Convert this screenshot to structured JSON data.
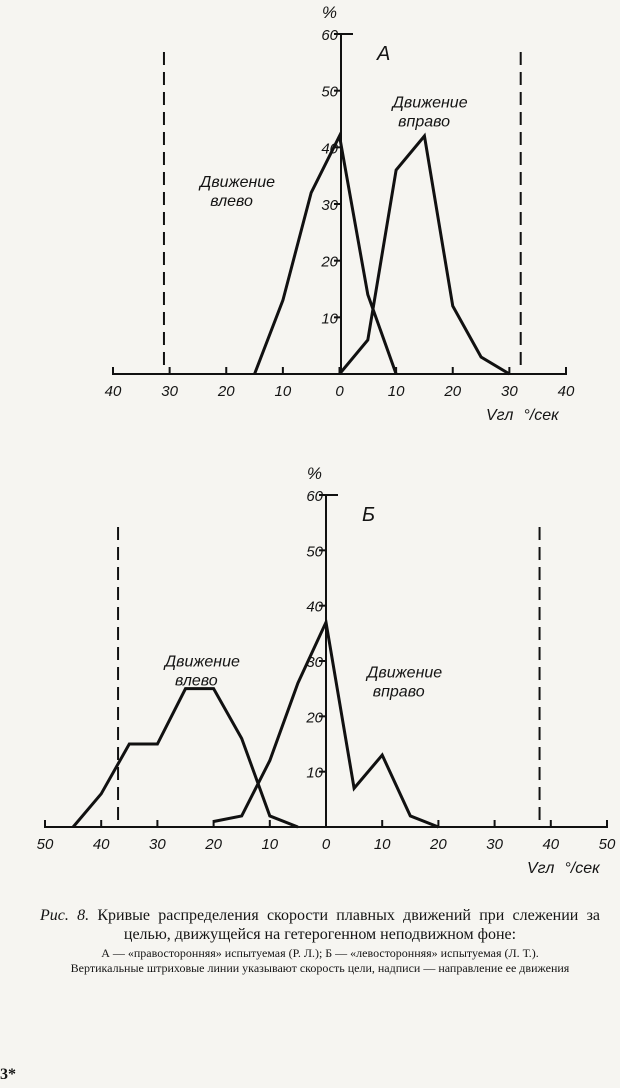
{
  "chart_data": [
    {
      "type": "line",
      "panel_label": "А",
      "ylabel": "%",
      "xlabel": "Vгл °/сек",
      "xlim": [
        -40,
        40
      ],
      "ylim": [
        0,
        60
      ],
      "x_tick_labels": [
        "40",
        "30",
        "20",
        "10",
        "0",
        "10",
        "20",
        "30",
        "40"
      ],
      "x_ticks": [
        -40,
        -30,
        -20,
        -10,
        0,
        10,
        20,
        30,
        40
      ],
      "y_ticks": [
        10,
        20,
        30,
        40,
        50,
        60
      ],
      "y_tick_labels": [
        "10",
        "20",
        "30",
        "40",
        "50",
        "60"
      ],
      "series": [
        {
          "name": "Движение влево",
          "x": [
            -15,
            -10,
            -5,
            0,
            5,
            10
          ],
          "y": [
            0,
            13,
            32,
            42,
            14,
            0
          ]
        },
        {
          "name": "Движение вправо",
          "x": [
            0,
            5,
            10,
            15,
            20,
            25,
            30
          ],
          "y": [
            0,
            6,
            36,
            42,
            12,
            3,
            0
          ]
        }
      ],
      "annotations": [
        {
          "text": [
            "Движение",
            "влево"
          ],
          "x": -18,
          "y": 33
        },
        {
          "text": [
            "Движение",
            "вправо"
          ],
          "x": 16,
          "y": 47
        }
      ],
      "target_speed_lines": [
        -31,
        32
      ],
      "grid": false
    },
    {
      "type": "line",
      "panel_label": "Б",
      "ylabel": "%",
      "xlabel": "Vгл °/сек",
      "xlim": [
        -50,
        50
      ],
      "ylim": [
        0,
        60
      ],
      "x_tick_labels": [
        "50",
        "40",
        "30",
        "20",
        "10",
        "0",
        "10",
        "20",
        "30",
        "40",
        "50"
      ],
      "x_ticks": [
        -50,
        -40,
        -30,
        -20,
        -10,
        0,
        10,
        20,
        30,
        40,
        50
      ],
      "y_ticks": [
        10,
        20,
        30,
        40,
        50,
        60
      ],
      "y_tick_labels": [
        "10",
        "20",
        "30",
        "40",
        "50",
        "60"
      ],
      "series": [
        {
          "name": "Движение влево",
          "x": [
            -45,
            -40,
            -35,
            -30,
            -25,
            -20,
            -15,
            -10,
            -5
          ],
          "y": [
            0,
            6,
            15,
            15,
            25,
            25,
            16,
            2,
            0
          ]
        },
        {
          "name": "Движение вправо",
          "x": [
            -20,
            -15,
            -10,
            -5,
            0,
            5,
            10,
            15,
            20
          ],
          "y": [
            1,
            2,
            12,
            26,
            37,
            7,
            13,
            2,
            0
          ]
        }
      ],
      "annotations": [
        {
          "text": [
            "Движение",
            "влево"
          ],
          "x": -22,
          "y": 29
        },
        {
          "text": [
            "Движение",
            "вправо"
          ],
          "x": 14,
          "y": 27
        }
      ],
      "target_speed_lines": [
        -37,
        38
      ],
      "grid": false
    }
  ],
  "caption": {
    "label": "Рис. 8.",
    "main": "Кривые распределения скорости плавных движений при слежении за целью, движущейся на гетерогенном неподвижном фоне:",
    "legend": "А — «правосторонняя» испытуемая (Р. Л.); Б — «левосторонняя» испытуемая (Л. Т.).",
    "note": "Вертикальные штриховые линии указывают скорость цели, надписи — направление ее движения"
  },
  "page_number": "3*"
}
